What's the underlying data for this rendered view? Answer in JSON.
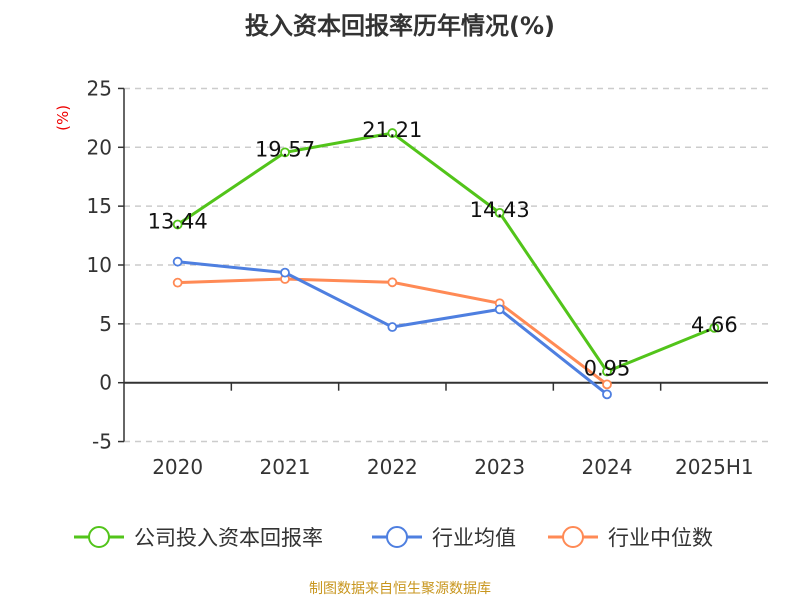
{
  "chart_data": {
    "type": "line",
    "title": "投入资本回报率历年情况(%)",
    "ylabel": "(%)",
    "xlabel": "",
    "categories": [
      "2020",
      "2021",
      "2022",
      "2023",
      "2024",
      "2025H1"
    ],
    "ylim": [
      -5,
      25
    ],
    "yticks": [
      -5,
      0,
      5,
      10,
      15,
      20,
      25
    ],
    "grid": true,
    "legend_position": "bottom",
    "series": [
      {
        "name": "公司投入资本回报率",
        "color": "#52c41a",
        "values": [
          13.44,
          19.57,
          21.21,
          14.43,
          0.95,
          4.66
        ],
        "labels": [
          "13.44",
          "19.57",
          "21.21",
          "14.43",
          "0.95",
          "4.66"
        ]
      },
      {
        "name": "行业均值",
        "color": "#4e7fe0",
        "values": [
          10.28,
          9.35,
          4.73,
          6.23,
          -0.99,
          null
        ]
      },
      {
        "name": "行业中位数",
        "color": "#ff8a55",
        "values": [
          8.5,
          8.81,
          8.53,
          6.75,
          -0.14,
          null
        ]
      }
    ]
  },
  "source": "制图数据来自恒生聚源数据库"
}
